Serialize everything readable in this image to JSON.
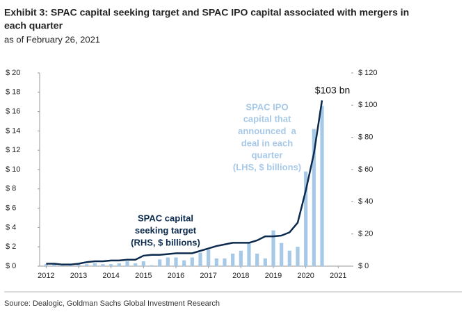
{
  "chart_data": {
    "type": "bar-line",
    "title": [
      "Exhibit 3: SPAC capital seeking target and SPAC IPO capital associated with mergers in",
      "each quarter"
    ],
    "subtitle": "as of February 26, 2021",
    "source": "Source: Dealogic, Goldman Sachs Global Investment Research",
    "x": [
      2012,
      2012.25,
      2012.5,
      2012.75,
      2013,
      2013.25,
      2013.5,
      2013.75,
      2014,
      2014.25,
      2014.5,
      2014.75,
      2015,
      2015.25,
      2015.5,
      2015.75,
      2016,
      2016.25,
      2016.5,
      2016.75,
      2017,
      2017.25,
      2017.5,
      2017.75,
      2018,
      2018.25,
      2018.5,
      2018.75,
      2019,
      2019.25,
      2019.5,
      2019.75,
      2020,
      2020.25,
      2020.5
    ],
    "series": [
      {
        "type": "bar",
        "color": "#a7c9e8",
        "axis": "y",
        "values": [
          0.2,
          0.3,
          0.1,
          0.1,
          0.2,
          0.2,
          0.3,
          0.2,
          0.2,
          0.3,
          0.5,
          0.3,
          0.5,
          0.1,
          0.7,
          0.9,
          0.9,
          0.6,
          0.9,
          1.4,
          1.7,
          0.8,
          0.8,
          1.3,
          1.6,
          2.4,
          1.3,
          0.8,
          3.7,
          2.4,
          1.6,
          2.0,
          9.8,
          14.2,
          16.6
        ]
      },
      {
        "type": "line",
        "color": "#0c2a4d",
        "axis": "y2",
        "values": [
          1.5,
          1.5,
          1,
          1,
          1.5,
          2.5,
          3,
          3,
          3.5,
          3.5,
          4,
          4,
          6.5,
          7,
          7,
          7.5,
          8,
          8,
          8,
          9.5,
          11,
          12.5,
          13.5,
          14.5,
          14.5,
          14.5,
          16,
          18.5,
          18.5,
          19,
          21,
          27,
          47,
          70,
          103
        ]
      }
    ],
    "xlim": [
      2011.8,
      2021.4
    ],
    "xticks": [
      2012,
      2013,
      2014,
      2015,
      2016,
      2017,
      2018,
      2019,
      2020,
      2021
    ],
    "ylim": [
      0,
      20
    ],
    "yticks": [
      {
        "value": 0,
        "label": "$ 0"
      },
      {
        "value": 2,
        "label": "$ 2"
      },
      {
        "value": 4,
        "label": "$ 4"
      },
      {
        "value": 6,
        "label": "$ 6"
      },
      {
        "value": 8,
        "label": "$ 8"
      },
      {
        "value": 10,
        "label": "$ 10"
      },
      {
        "value": 12,
        "label": "$ 12"
      },
      {
        "value": 14,
        "label": "$ 14"
      },
      {
        "value": 16,
        "label": "$ 16"
      },
      {
        "value": 18,
        "label": "$ 18"
      },
      {
        "value": 20,
        "label": "$ 20"
      }
    ],
    "y2lim": [
      0,
      120
    ],
    "y2ticks": [
      {
        "value": 0,
        "label": "$ 0"
      },
      {
        "value": 20,
        "label": "$ 20"
      },
      {
        "value": 40,
        "label": "$ 40"
      },
      {
        "value": 60,
        "label": "$ 60"
      },
      {
        "value": 80,
        "label": "$ 80"
      },
      {
        "value": 100,
        "label": "$ 100"
      },
      {
        "value": 120,
        "label": "$ 120"
      }
    ],
    "annotations": {
      "end_label": "$103 bn",
      "bars_label": [
        "SPAC IPO",
        "capital that",
        "announced  a",
        "deal in each",
        "quarter",
        "(LHS, $ billions)"
      ],
      "line_label": [
        "SPAC capital",
        "seeking target",
        "(RHS, $ billions)"
      ]
    }
  }
}
